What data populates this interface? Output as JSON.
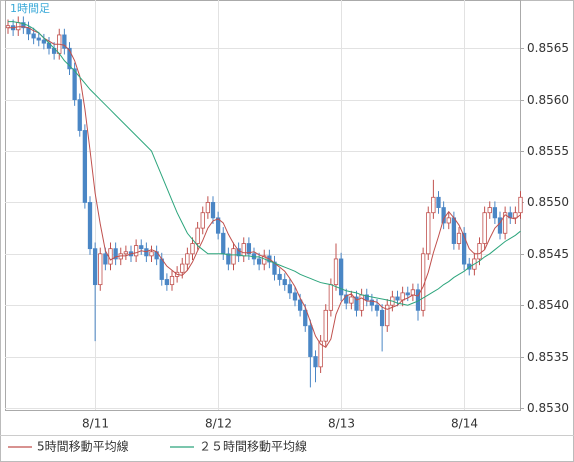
{
  "chart_data": {
    "type": "candlestick",
    "title": "1時間足",
    "categories": [
      null,
      null,
      null,
      null,
      null,
      null,
      null,
      null,
      null,
      null,
      null,
      null,
      null,
      null,
      null,
      null,
      null,
      "8/11",
      null,
      null,
      null,
      null,
      null,
      null,
      null,
      null,
      null,
      null,
      null,
      null,
      null,
      null,
      null,
      null,
      null,
      null,
      null,
      null,
      null,
      null,
      null,
      "8/12",
      null,
      null,
      null,
      null,
      null,
      null,
      null,
      null,
      null,
      null,
      null,
      null,
      null,
      null,
      null,
      null,
      null,
      null,
      null,
      null,
      null,
      null,
      null,
      "8/13",
      null,
      null,
      null,
      null,
      null,
      null,
      null,
      null,
      null,
      null,
      null,
      null,
      null,
      null,
      null,
      null,
      null,
      null,
      null,
      null,
      null,
      null,
      null,
      "8/14",
      null,
      null,
      null,
      null,
      null,
      null,
      null,
      null,
      null,
      null,
      null
    ],
    "open": [
      0.8567,
      0.85672,
      0.85668,
      0.85675,
      0.8567,
      0.85664,
      0.8566,
      0.85658,
      0.85655,
      0.8565,
      0.85645,
      0.85663,
      0.8565,
      0.8563,
      0.856,
      0.8557,
      0.855,
      0.85455,
      0.8542,
      0.8545,
      0.8544,
      0.85455,
      0.85445,
      0.8545,
      0.85452,
      0.85448,
      0.85458,
      0.85455,
      0.85448,
      0.85452,
      0.85445,
      0.85425,
      0.8542,
      0.85428,
      0.85432,
      0.8544,
      0.8545,
      0.8546,
      0.85475,
      0.8549,
      0.855,
      0.85485,
      0.8547,
      0.8545,
      0.8544,
      0.85455,
      0.85448,
      0.8546,
      0.8545,
      0.85445,
      0.8544,
      0.85448,
      0.85442,
      0.8543,
      0.85425,
      0.8542,
      0.85412,
      0.85405,
      0.85395,
      0.8538,
      0.8535,
      0.8534,
      0.85365,
      0.85395,
      0.8542,
      0.85445,
      0.8541,
      0.85402,
      0.85408,
      0.85395,
      0.8541,
      0.85405,
      0.854,
      0.85395,
      0.8538,
      0.854,
      0.85408,
      0.85405,
      0.85412,
      0.8541,
      0.85415,
      0.85395,
      0.8545,
      0.8549,
      0.85505,
      0.85495,
      0.8548,
      0.85485,
      0.8546,
      0.8547,
      0.8544,
      0.85435,
      0.85445,
      0.8546,
      0.8549,
      0.85495,
      0.85485,
      0.8547,
      0.8549,
      0.85485,
      0.8549
    ],
    "high": [
      0.85678,
      0.85678,
      0.85681,
      0.85681,
      0.85676,
      0.8567,
      0.85666,
      0.85664,
      0.85661,
      0.85656,
      0.85669,
      0.85669,
      0.85656,
      0.85636,
      0.85606,
      0.85576,
      0.85506,
      0.85461,
      0.85456,
      0.85456,
      0.85461,
      0.85461,
      0.85456,
      0.85458,
      0.85458,
      0.85464,
      0.85464,
      0.85461,
      0.85458,
      0.85458,
      0.85451,
      0.85431,
      0.85434,
      0.85438,
      0.85446,
      0.85456,
      0.85466,
      0.85481,
      0.85496,
      0.85506,
      0.85506,
      0.85491,
      0.85476,
      0.85456,
      0.85461,
      0.85461,
      0.85466,
      0.85466,
      0.85456,
      0.85451,
      0.85454,
      0.85454,
      0.85448,
      0.85436,
      0.85431,
      0.85426,
      0.85418,
      0.85411,
      0.85401,
      0.85386,
      0.85356,
      0.85371,
      0.85401,
      0.85426,
      0.8546,
      0.85451,
      0.85416,
      0.85414,
      0.85414,
      0.85416,
      0.85416,
      0.85411,
      0.85406,
      0.85401,
      0.85406,
      0.85414,
      0.85414,
      0.85418,
      0.85418,
      0.85421,
      0.85421,
      0.85456,
      0.85496,
      0.85522,
      0.85511,
      0.85501,
      0.85491,
      0.85491,
      0.85476,
      0.85476,
      0.85446,
      0.85451,
      0.85466,
      0.85496,
      0.85501,
      0.85501,
      0.85491,
      0.85496,
      0.85496,
      0.85496,
      0.85511
    ],
    "low": [
      0.85664,
      0.85662,
      0.85662,
      0.85664,
      0.85658,
      0.85654,
      0.85652,
      0.85649,
      0.85644,
      0.85639,
      0.85639,
      0.85644,
      0.85624,
      0.85594,
      0.85564,
      0.85494,
      0.85449,
      0.85365,
      0.85414,
      0.85434,
      0.85434,
      0.85439,
      0.85439,
      0.85444,
      0.85442,
      0.85442,
      0.85449,
      0.85442,
      0.85442,
      0.85439,
      0.85419,
      0.85414,
      0.85414,
      0.85422,
      0.85426,
      0.85434,
      0.85444,
      0.85454,
      0.85469,
      0.85484,
      0.85479,
      0.85464,
      0.85444,
      0.85434,
      0.85434,
      0.85442,
      0.85442,
      0.85444,
      0.85439,
      0.85434,
      0.85434,
      0.85436,
      0.85424,
      0.85419,
      0.85414,
      0.85406,
      0.85399,
      0.85389,
      0.85374,
      0.8532,
      0.85325,
      0.85334,
      0.85359,
      0.85389,
      0.85414,
      0.85404,
      0.85396,
      0.85396,
      0.85389,
      0.85389,
      0.85399,
      0.85394,
      0.85389,
      0.85355,
      0.85374,
      0.85394,
      0.85399,
      0.85399,
      0.85404,
      0.85404,
      0.85385,
      0.85389,
      0.85444,
      0.85484,
      0.85489,
      0.85474,
      0.85474,
      0.85454,
      0.85454,
      0.85434,
      0.85429,
      0.85429,
      0.85439,
      0.85454,
      0.85484,
      0.85479,
      0.85464,
      0.85464,
      0.85479,
      0.85479,
      0.85484
    ],
    "close": [
      0.85672,
      0.85668,
      0.85675,
      0.8567,
      0.85664,
      0.8566,
      0.85658,
      0.85655,
      0.8565,
      0.85645,
      0.85663,
      0.8565,
      0.8563,
      0.856,
      0.8557,
      0.855,
      0.85455,
      0.8542,
      0.8545,
      0.8544,
      0.85455,
      0.85445,
      0.8545,
      0.85452,
      0.85448,
      0.85458,
      0.85455,
      0.85448,
      0.85452,
      0.85445,
      0.85425,
      0.8542,
      0.85428,
      0.85432,
      0.8544,
      0.8545,
      0.8546,
      0.85475,
      0.8549,
      0.855,
      0.85485,
      0.8547,
      0.8545,
      0.8544,
      0.85455,
      0.85448,
      0.8546,
      0.8545,
      0.85445,
      0.8544,
      0.85448,
      0.85442,
      0.8543,
      0.85425,
      0.8542,
      0.85412,
      0.85405,
      0.85395,
      0.8538,
      0.8535,
      0.8534,
      0.85365,
      0.85395,
      0.8542,
      0.85445,
      0.8541,
      0.85402,
      0.85408,
      0.85395,
      0.8541,
      0.85405,
      0.854,
      0.85395,
      0.8538,
      0.854,
      0.85408,
      0.85405,
      0.85412,
      0.8541,
      0.85415,
      0.85395,
      0.8545,
      0.8549,
      0.85505,
      0.85495,
      0.8548,
      0.85485,
      0.8546,
      0.8547,
      0.8544,
      0.85435,
      0.85445,
      0.8546,
      0.8549,
      0.85495,
      0.85485,
      0.8547,
      0.8549,
      0.85485,
      0.8549,
      0.85505
    ],
    "up_color": "#c0504d",
    "down_color": "#4a86c5",
    "series": [
      {
        "name": "5時間移動平均線",
        "color": "#c0504d",
        "values": [
          0.8567,
          0.8567,
          0.85671,
          0.85671,
          0.8567,
          0.85667,
          0.85665,
          0.8566,
          0.85657,
          0.85654,
          0.85654,
          0.85653,
          0.85648,
          0.85638,
          0.85623,
          0.85591,
          0.85551,
          0.85509,
          0.85479,
          0.85453,
          0.85444,
          0.85447,
          0.85448,
          0.85448,
          0.8545,
          0.85451,
          0.85453,
          0.85452,
          0.85454,
          0.85452,
          0.85445,
          0.85438,
          0.85434,
          0.8543,
          0.85429,
          0.85434,
          0.85442,
          0.85453,
          0.85463,
          0.85475,
          0.85482,
          0.85484,
          0.8548,
          0.85469,
          0.8546,
          0.85453,
          0.85451,
          0.85451,
          0.85452,
          0.85449,
          0.85447,
          0.85445,
          0.85441,
          0.85437,
          0.85433,
          0.85426,
          0.85418,
          0.85407,
          0.85398,
          0.85384,
          0.8537,
          0.85362,
          0.85359,
          0.85367,
          0.85391,
          0.85403,
          0.85409,
          0.85411,
          0.85405,
          0.85407,
          0.85404,
          0.85404,
          0.85403,
          0.85398,
          0.85396,
          0.85398,
          0.854,
          0.85405,
          0.85407,
          0.8541,
          0.85409,
          0.85418,
          0.85432,
          0.85451,
          0.85467,
          0.85484,
          0.85491,
          0.85485,
          0.85478,
          0.85467,
          0.85455,
          0.8545,
          0.8545,
          0.85454,
          0.85465,
          0.85475,
          0.8548,
          0.85488,
          0.85485,
          0.85484,
          0.85488
        ]
      },
      {
        "name": "２５時間移動平均線",
        "color": "#2ca57c",
        "values": [
          0.85676,
          0.85676,
          0.85675,
          0.85674,
          0.85672,
          0.85669,
          0.85665,
          0.8566,
          0.85655,
          0.8565,
          0.85645,
          0.85638,
          0.85633,
          0.85628,
          0.85622,
          0.85616,
          0.8561,
          0.85605,
          0.856,
          0.85595,
          0.8559,
          0.85585,
          0.8558,
          0.85575,
          0.8557,
          0.85565,
          0.8556,
          0.85555,
          0.8555,
          0.85538,
          0.85526,
          0.85514,
          0.85502,
          0.8549,
          0.8548,
          0.8547,
          0.85464,
          0.85458,
          0.85454,
          0.8545,
          0.8545,
          0.8545,
          0.8545,
          0.85449,
          0.85449,
          0.85449,
          0.85448,
          0.85448,
          0.85447,
          0.85447,
          0.85445,
          0.85443,
          0.85441,
          0.85439,
          0.85437,
          0.85435,
          0.85433,
          0.8543,
          0.85428,
          0.85426,
          0.85424,
          0.85422,
          0.85421,
          0.8542,
          0.85418,
          0.85416,
          0.85414,
          0.85413,
          0.85412,
          0.8541,
          0.85409,
          0.85408,
          0.85407,
          0.85406,
          0.85405,
          0.85404,
          0.85402,
          0.85401,
          0.854,
          0.85402,
          0.85404,
          0.85407,
          0.8541,
          0.85413,
          0.85416,
          0.8542,
          0.85423,
          0.85427,
          0.8543,
          0.85433,
          0.85437,
          0.8544,
          0.85443,
          0.85447,
          0.8545,
          0.85454,
          0.85458,
          0.85462,
          0.85465,
          0.85468,
          0.85472
        ]
      }
    ],
    "ylim": [
      0.85298,
      0.85697
    ],
    "yticks": [
      {
        "value": 0.853,
        "label": "0.8530"
      },
      {
        "value": 0.8535,
        "label": "0.8535"
      },
      {
        "value": 0.854,
        "label": "0.8540"
      },
      {
        "value": 0.8545,
        "label": "0.8545"
      },
      {
        "value": 0.855,
        "label": "0.8550"
      },
      {
        "value": 0.8555,
        "label": "0.8555"
      },
      {
        "value": 0.856,
        "label": "0.8560"
      },
      {
        "value": 0.8565,
        "label": "0.8565"
      }
    ],
    "grid": true
  }
}
